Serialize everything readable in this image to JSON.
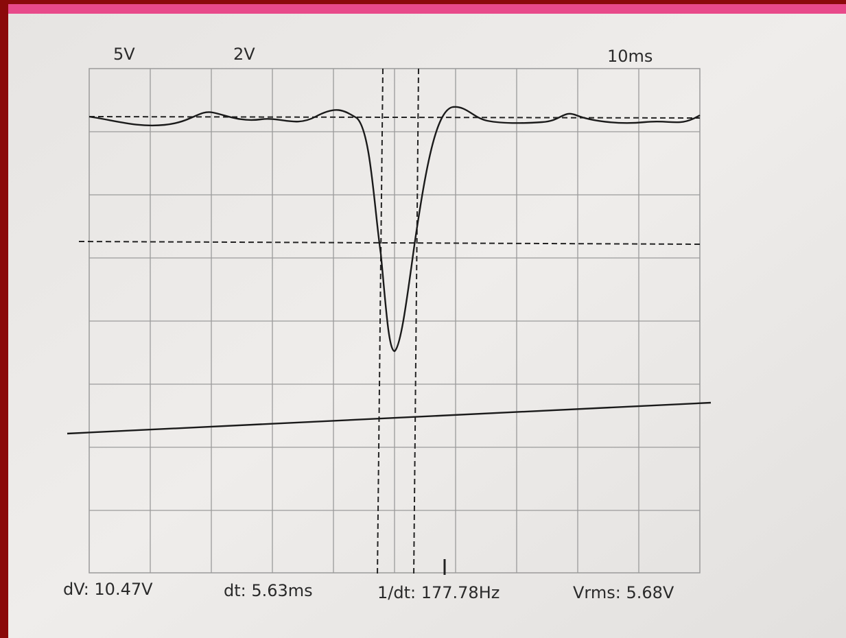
{
  "header": {
    "channel_1_scale": "5V",
    "channel_2_scale": "2V",
    "time_scale": "10ms"
  },
  "footer": {
    "delta_v": "dV: 10.47V",
    "delta_t": "dt: 5.63ms",
    "frequency": "1/dt: 177.78Hz",
    "vrms": "Vrms: 5.68V"
  }
}
